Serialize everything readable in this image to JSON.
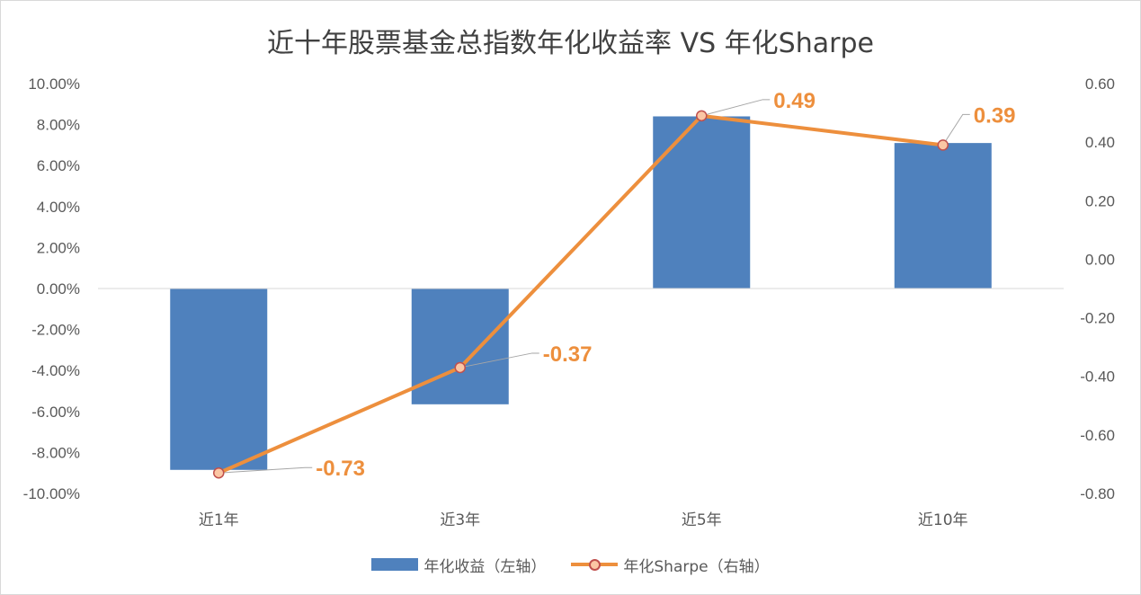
{
  "chart_data": {
    "type": "bar+line",
    "title": "近十年股票基金总指数年化收益率 VS  年化Sharpe",
    "categories": [
      "近1年",
      "近3年",
      "近5年",
      "近10年"
    ],
    "series": [
      {
        "name": "年化收益（左轴）",
        "type": "bar",
        "axis": "left",
        "values": [
          -8.85,
          -5.65,
          8.4,
          7.1
        ],
        "color": "#4f81bd"
      },
      {
        "name": "年化Sharpe（右轴）",
        "type": "line",
        "axis": "right",
        "values": [
          -0.73,
          -0.37,
          0.49,
          0.39
        ],
        "data_labels": [
          "-0.73",
          "-0.37",
          "0.49",
          "0.39"
        ],
        "color": "#ed8f3d",
        "marker_edge": "#c0504d",
        "marker_fill": "#fbc6a4"
      }
    ],
    "left_axis": {
      "min": -10,
      "max": 10,
      "step": 2,
      "ticks": [
        "10.00%",
        "8.00%",
        "6.00%",
        "4.00%",
        "2.00%",
        "0.00%",
        "-2.00%",
        "-4.00%",
        "-6.00%",
        "-8.00%",
        "-10.00%"
      ]
    },
    "right_axis": {
      "min": -0.8,
      "max": 0.6,
      "step": 0.2,
      "ticks": [
        "0.60",
        "0.40",
        "0.20",
        "0.00",
        "-0.20",
        "-0.40",
        "-0.60",
        "-0.80"
      ]
    },
    "grid": false,
    "legend_position": "bottom"
  },
  "legend": {
    "bar_label": "年化收益（左轴）",
    "line_label": "年化Sharpe（右轴）"
  }
}
